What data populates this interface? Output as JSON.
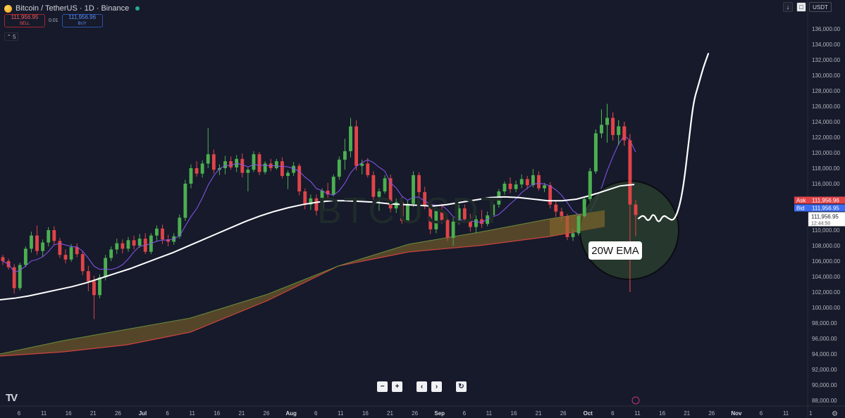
{
  "header": {
    "symbol": "Bitcoin / TetherUS · 1D · Binance",
    "sell_price": "111,956.95",
    "sell_label": "SELL",
    "qty": "0.01",
    "buy_price": "111,956.96",
    "buy_label": "BUY",
    "indicator_count": "5",
    "currency": "USDT",
    "icon_coin": "bitcoin-icon",
    "icon_live": "live-status-icon"
  },
  "price_scale": {
    "ask_label": "Ask",
    "ask_price": "111,956.96",
    "bid_label": "Bid",
    "bid_price": "111,956.95",
    "last_price": "111,956.95",
    "countdown": "12:44:50"
  },
  "annotation": {
    "ema_label": "20W EMA"
  },
  "watermark": "BTCUSDT",
  "colors": {
    "background": "#161a2b",
    "up_candle": "#4caf50",
    "down_candle": "#e04448",
    "ema_line": "#ffffff",
    "ma_line": "#8a55f2",
    "band_fill": "#8a6b2a",
    "ask": "#e04448",
    "bid": "#3b6cf0",
    "circle_fill": "#2a3e2e"
  },
  "chart_data": {
    "type": "candlestick",
    "symbol": "BTCUSDT",
    "timeframe": "1D",
    "ylim": [
      88000,
      138000
    ],
    "yticks": [
      88000,
      90000,
      92000,
      94000,
      96000,
      98000,
      100000,
      102000,
      104000,
      106000,
      108000,
      110000,
      112000,
      114000,
      116000,
      118000,
      120000,
      122000,
      124000,
      126000,
      128000,
      130000,
      132000,
      134000,
      136000
    ],
    "ytick_labels": [
      "88,000.00",
      "90,000.00",
      "92,000.00",
      "94,000.00",
      "96,000.00",
      "98,000.00",
      "100,000.00",
      "102,000.00",
      "104,000.00",
      "106,000.00",
      "108,000.00",
      "110,000.00",
      "112,000.00",
      "114,000.00",
      "116,000.00",
      "118,000.00",
      "120,000.00",
      "122,000.00",
      "124,000.00",
      "126,000.00",
      "128,000.00",
      "130,000.00",
      "132,000.00",
      "134,000.00",
      "136,000.00"
    ],
    "xtick_labels": [
      "6",
      "11",
      "16",
      "21",
      "26",
      "Jul",
      "6",
      "11",
      "16",
      "21",
      "26",
      "Aug",
      "6",
      "11",
      "16",
      "21",
      "26",
      "Sep",
      "6",
      "11",
      "16",
      "21",
      "26",
      "Oct",
      "6",
      "11",
      "16",
      "21",
      "26",
      "Nov",
      "6",
      "11",
      "1"
    ],
    "bold_xticks": [
      "Jul",
      "Aug",
      "Sep",
      "Oct",
      "Nov"
    ],
    "candles": [
      [
        106500,
        106800,
        105500,
        106000
      ],
      [
        106000,
        106300,
        104900,
        105200
      ],
      [
        105200,
        105600,
        101800,
        102500
      ],
      [
        102500,
        105800,
        102200,
        105500
      ],
      [
        105500,
        107900,
        105200,
        107600
      ],
      [
        107600,
        109800,
        107100,
        109300
      ],
      [
        109300,
        110600,
        106800,
        107300
      ],
      [
        107300,
        108800,
        106600,
        108400
      ],
      [
        108400,
        110400,
        107900,
        110000
      ],
      [
        110000,
        110500,
        108000,
        108600
      ],
      [
        108600,
        109000,
        106400,
        106800
      ],
      [
        106800,
        107500,
        105700,
        106200
      ],
      [
        106200,
        108200,
        105900,
        107800
      ],
      [
        107800,
        108300,
        106500,
        106900
      ],
      [
        106900,
        107300,
        104200,
        104700
      ],
      [
        104700,
        105400,
        102100,
        103400
      ],
      [
        103400,
        104100,
        98500,
        101600
      ],
      [
        101600,
        104300,
        101200,
        103900
      ],
      [
        103900,
        106800,
        103500,
        106400
      ],
      [
        106400,
        107900,
        106000,
        107500
      ],
      [
        107500,
        108900,
        106900,
        108300
      ],
      [
        108300,
        108800,
        107000,
        107600
      ],
      [
        107600,
        109100,
        107200,
        108700
      ],
      [
        108700,
        109300,
        107500,
        108000
      ],
      [
        108000,
        109500,
        107700,
        108900
      ],
      [
        108900,
        109600,
        106900,
        107200
      ],
      [
        107200,
        109600,
        106900,
        109300
      ],
      [
        109300,
        110600,
        108600,
        110200
      ],
      [
        110200,
        110700,
        108200,
        108800
      ],
      [
        108800,
        109400,
        107900,
        108500
      ],
      [
        108500,
        109600,
        108100,
        109200
      ],
      [
        109200,
        112000,
        108900,
        111600
      ],
      [
        111600,
        116500,
        111200,
        116000
      ],
      [
        116000,
        118500,
        115400,
        118000
      ],
      [
        118000,
        118900,
        116900,
        117300
      ],
      [
        117300,
        119000,
        116800,
        118600
      ],
      [
        118600,
        123200,
        118000,
        119800
      ],
      [
        119800,
        120400,
        117300,
        117800
      ],
      [
        117800,
        118500,
        117100,
        118000
      ],
      [
        118000,
        119600,
        117200,
        118900
      ],
      [
        118900,
        119500,
        117800,
        118100
      ],
      [
        118100,
        119700,
        117500,
        119200
      ],
      [
        119200,
        119900,
        116800,
        117400
      ],
      [
        117400,
        118100,
        115000,
        117800
      ],
      [
        117800,
        120200,
        117500,
        119800
      ],
      [
        119800,
        120100,
        117100,
        117500
      ],
      [
        117500,
        118900,
        117200,
        118600
      ],
      [
        118600,
        119200,
        117600,
        118000
      ],
      [
        118000,
        119200,
        117800,
        118900
      ],
      [
        118900,
        119400,
        116700,
        117000
      ],
      [
        117000,
        117700,
        115300,
        117400
      ],
      [
        117400,
        118800,
        117000,
        118300
      ],
      [
        118300,
        118600,
        114500,
        115000
      ],
      [
        115000,
        115400,
        112700,
        113300
      ],
      [
        113300,
        114600,
        112600,
        114100
      ],
      [
        114100,
        114600,
        111900,
        112500
      ],
      [
        112500,
        115400,
        112200,
        115100
      ],
      [
        115100,
        116100,
        114000,
        114600
      ],
      [
        114600,
        117200,
        114400,
        116900
      ],
      [
        116900,
        119500,
        116500,
        119100
      ],
      [
        119100,
        121800,
        117800,
        120200
      ],
      [
        120200,
        124500,
        119400,
        123400
      ],
      [
        123400,
        124200,
        117700,
        118300
      ],
      [
        118300,
        119100,
        117200,
        118600
      ],
      [
        118600,
        119300,
        116800,
        117100
      ],
      [
        117100,
        117600,
        113900,
        114300
      ],
      [
        114300,
        115400,
        112500,
        115000
      ],
      [
        115000,
        117100,
        114700,
        116700
      ],
      [
        116700,
        117200,
        112300,
        112800
      ],
      [
        112800,
        114100,
        112200,
        113600
      ],
      [
        113600,
        114300,
        110800,
        111200
      ],
      [
        111200,
        113900,
        110900,
        113400
      ],
      [
        113400,
        117600,
        113000,
        117100
      ],
      [
        117100,
        117500,
        114300,
        114900
      ],
      [
        114900,
        115600,
        112700,
        113200
      ],
      [
        113200,
        113800,
        109500,
        110100
      ],
      [
        110100,
        112900,
        109600,
        112500
      ],
      [
        112500,
        113400,
        110800,
        111300
      ],
      [
        111300,
        111700,
        108600,
        109000
      ],
      [
        109000,
        111600,
        108000,
        111100
      ],
      [
        111100,
        113300,
        110700,
        112800
      ],
      [
        112800,
        113300,
        110900,
        111400
      ],
      [
        111400,
        112100,
        109800,
        110400
      ],
      [
        110400,
        111900,
        109600,
        111400
      ],
      [
        111400,
        112600,
        110300,
        110800
      ],
      [
        110800,
        112400,
        110500,
        111900
      ],
      [
        111900,
        113600,
        111700,
        113300
      ],
      [
        113300,
        115300,
        112900,
        115000
      ],
      [
        115000,
        116300,
        114600,
        116000
      ],
      [
        116000,
        116800,
        114800,
        115300
      ],
      [
        115300,
        116400,
        114900,
        115900
      ],
      [
        115900,
        117200,
        115400,
        116600
      ],
      [
        116600,
        117000,
        115300,
        115800
      ],
      [
        115800,
        117900,
        115500,
        117100
      ],
      [
        117100,
        117600,
        115100,
        115400
      ],
      [
        115400,
        116100,
        114900,
        115800
      ],
      [
        115800,
        116200,
        112800,
        113300
      ],
      [
        113300,
        113900,
        111700,
        112400
      ],
      [
        112400,
        112900,
        111100,
        111800
      ],
      [
        111800,
        112100,
        108700,
        109100
      ],
      [
        109100,
        110200,
        108600,
        109600
      ],
      [
        109600,
        112000,
        109300,
        111800
      ],
      [
        111800,
        114200,
        111600,
        114000
      ],
      [
        114000,
        118000,
        113700,
        117600
      ],
      [
        117600,
        123000,
        117300,
        122500
      ],
      [
        122500,
        125600,
        121900,
        123600
      ],
      [
        123600,
        126300,
        121300,
        124500
      ],
      [
        124500,
        125200,
        121600,
        122300
      ],
      [
        122300,
        124200,
        121000,
        123400
      ],
      [
        123400,
        124000,
        120900,
        121600
      ],
      [
        121600,
        122400,
        102000,
        113300
      ],
      [
        113300,
        113900,
        109200,
        111957
      ]
    ],
    "series": [
      {
        "name": "20W EMA",
        "color": "#ffffff",
        "values": [
          101000,
          101200,
          101500,
          101900,
          102300,
          102700,
          103200,
          103800,
          104400,
          105000,
          105700,
          106400,
          107100,
          107900,
          108700,
          109500,
          110300,
          111100,
          111800,
          112400,
          112900,
          113300,
          113600,
          113800,
          113800,
          113700,
          113600,
          113400,
          113300,
          113200,
          113100,
          113300,
          113600,
          113900,
          114200,
          114300,
          114200,
          114000,
          113800,
          113800,
          114000,
          114500,
          115100,
          115700,
          115900
        ]
      }
    ],
    "projection": {
      "values": [
        111500,
        112000,
        111000,
        112300,
        110800,
        112000,
        111500,
        111200,
        112500,
        115500,
        121000,
        126500,
        128700,
        131000,
        132800
      ]
    }
  }
}
